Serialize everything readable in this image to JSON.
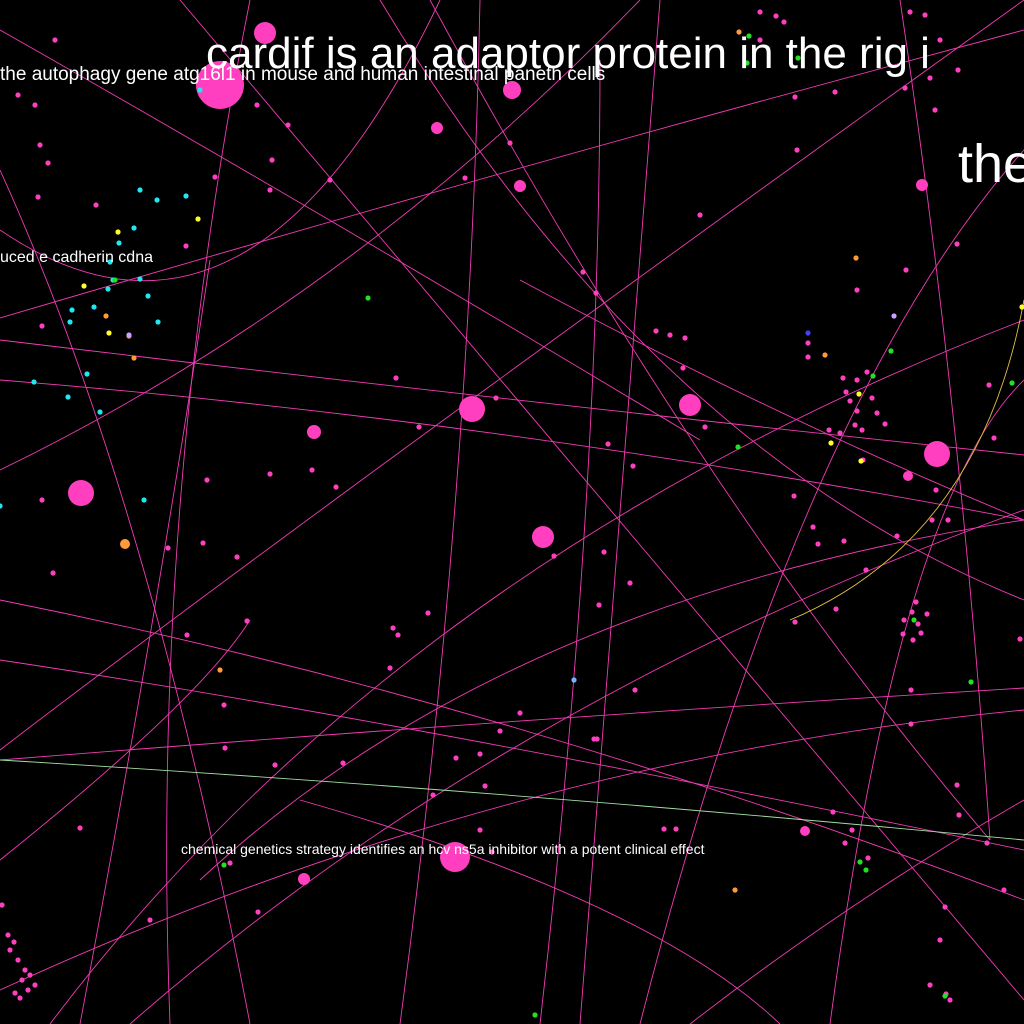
{
  "background_color": "#000000",
  "node_colors": {
    "primary": "#ff3fbf",
    "cyan": "#1ee8f0",
    "yellow": "#ffff2a",
    "green": "#22e022",
    "orange": "#ff9a3a",
    "lavender": "#c8a0ff",
    "blue": "#4040ff",
    "sky": "#7ab0ff"
  },
  "edge_colors": {
    "primary": "#ff3fbf",
    "yellow": "#e0c040",
    "green": "#a0e0a0"
  },
  "labels": {
    "cardif": "cardif is an adaptor protein in the rig i",
    "the_partial": "the",
    "autophagy": "the autophagy gene atg16l1 in mouse and human intestinal paneth cells",
    "cadherin": "uced e cadherin cdna",
    "hcv": "chemical genetics strategy identifies an hcv ns5a inhibitor with a potent clinical effect"
  }
}
